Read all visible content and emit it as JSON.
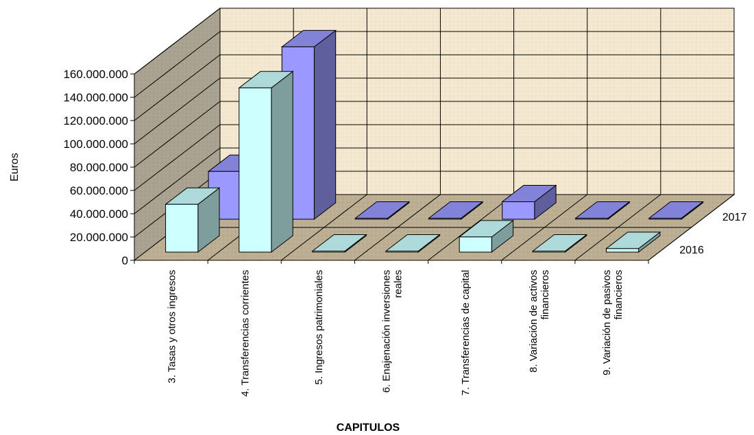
{
  "chart_data": {
    "type": "bar",
    "subtype": "3d-clustered-column",
    "ylabel": "Euros",
    "xlabel": "CAPITULOS",
    "ylim": [
      0,
      160000000
    ],
    "y_ticks": [
      "0",
      "20.000.000",
      "40.000.000",
      "60.000.000",
      "80.000.000",
      "100.000.000",
      "120.000.000",
      "140.000.000",
      "160.000.000"
    ],
    "y_tick_values": [
      0,
      20000000,
      40000000,
      60000000,
      80000000,
      100000000,
      120000000,
      140000000,
      160000000
    ],
    "categories": [
      [
        "3. Tasas y otros ingresos"
      ],
      [
        "4. Transferencias corrientes"
      ],
      [
        "5. Ingresos patrimoniales"
      ],
      [
        "6. Enajenación inversiones",
        "reales"
      ],
      [
        "7. Transferencias de capital"
      ],
      [
        "8. Variación de activos",
        "financieros"
      ],
      [
        "9. Variación de pasivos",
        "financieros"
      ]
    ],
    "series": [
      {
        "name": "2016",
        "color": "#ccffff",
        "values": [
          41000000,
          141000000,
          500000,
          300000,
          13000000,
          300000,
          3000000
        ]
      },
      {
        "name": "2017",
        "color": "#9999ff",
        "values": [
          41000000,
          148000000,
          500000,
          300000,
          15000000,
          300000,
          300000
        ]
      }
    ],
    "colors": {
      "wall": "#f3e7d0",
      "side_wall": "#a8a08e",
      "floor": "#b9ac90",
      "grid": "#000000"
    },
    "grid": true,
    "legend": "depth-axis"
  }
}
